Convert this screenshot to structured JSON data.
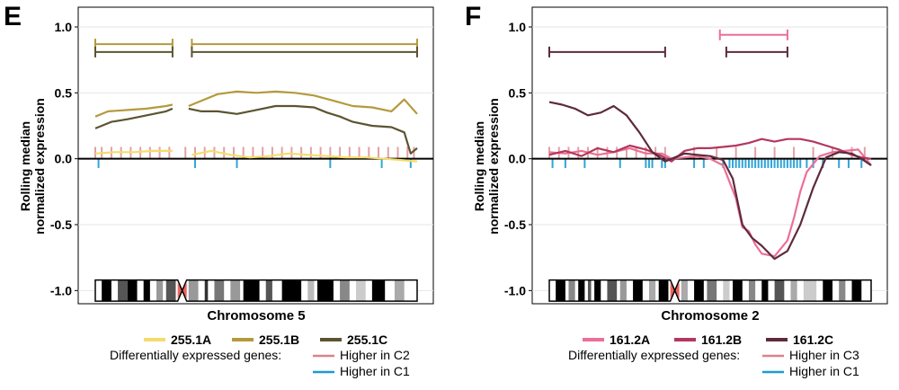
{
  "colors": {
    "A5": "#f5dc6a",
    "B5": "#b49a3c",
    "C5": "#5c5430",
    "A2": "#ec6f96",
    "B2": "#b3375e",
    "C2": "#5e2a3c",
    "higher_up": "#d9828a",
    "higher_down": "#1b9bd3",
    "centromere": "#f0625d",
    "grid": "#e6e6e6"
  },
  "chart_data": [
    {
      "type": "line",
      "panel": "E",
      "ylabel": [
        "Rolling median",
        "normalized expression"
      ],
      "xlabel": "Chromosome 5",
      "ylim": [
        -1.1,
        1.15
      ],
      "yticks": [
        1.0,
        0.5,
        0.0,
        -0.5,
        -1.0
      ],
      "ytick_labels": [
        "1.0",
        "0.5",
        "0.0",
        "-0.5",
        "-1.0"
      ],
      "xlim": [
        0,
        1
      ],
      "series": [
        {
          "name": "255.1A",
          "color_key": "A5",
          "segments": [
            {
              "x": [
                0.0,
                0.06,
                0.12,
                0.18,
                0.24
              ],
              "y": [
                0.04,
                0.05,
                0.05,
                0.06,
                0.06
              ]
            },
            {
              "x": [
                0.3,
                0.36,
                0.42,
                0.48,
                0.54,
                0.6,
                0.66,
                0.72,
                0.78,
                0.84,
                0.9,
                0.95,
                1.0
              ],
              "y": [
                0.03,
                0.06,
                0.03,
                0.01,
                0.02,
                0.04,
                0.03,
                0.02,
                0.01,
                0.01,
                0.0,
                -0.01,
                -0.02
              ]
            }
          ]
        },
        {
          "name": "255.1B",
          "color_key": "B5",
          "segments": [
            {
              "x": [
                0.0,
                0.04,
                0.1,
                0.16,
                0.22,
                0.24
              ],
              "y": [
                0.32,
                0.36,
                0.37,
                0.38,
                0.4,
                0.41
              ]
            },
            {
              "x": [
                0.29,
                0.33,
                0.38,
                0.44,
                0.5,
                0.56,
                0.62,
                0.68,
                0.74,
                0.8,
                0.86,
                0.92,
                0.96,
                1.0
              ],
              "y": [
                0.4,
                0.44,
                0.49,
                0.51,
                0.5,
                0.51,
                0.5,
                0.48,
                0.44,
                0.4,
                0.39,
                0.36,
                0.45,
                0.34
              ]
            }
          ]
        },
        {
          "name": "255.1C",
          "color_key": "C5",
          "segments": [
            {
              "x": [
                0.0,
                0.05,
                0.1,
                0.16,
                0.22,
                0.24
              ],
              "y": [
                0.23,
                0.28,
                0.3,
                0.33,
                0.36,
                0.38
              ]
            },
            {
              "x": [
                0.29,
                0.33,
                0.38,
                0.44,
                0.5,
                0.56,
                0.62,
                0.68,
                0.72,
                0.76,
                0.8,
                0.86,
                0.92,
                0.96,
                0.98,
                1.0
              ],
              "y": [
                0.38,
                0.36,
                0.36,
                0.34,
                0.37,
                0.4,
                0.4,
                0.39,
                0.35,
                0.32,
                0.28,
                0.25,
                0.24,
                0.2,
                0.04,
                0.08
              ]
            }
          ]
        }
      ],
      "higher_up_x": [
        0.0,
        0.02,
        0.05,
        0.08,
        0.11,
        0.14,
        0.17,
        0.2,
        0.23,
        0.28,
        0.31,
        0.34,
        0.37,
        0.4,
        0.43,
        0.46,
        0.49,
        0.52,
        0.55,
        0.58,
        0.61,
        0.64,
        0.67,
        0.7,
        0.73,
        0.76,
        0.79,
        0.82,
        0.85,
        0.88,
        0.91,
        0.94,
        0.97,
        0.99
      ],
      "higher_down_x": [
        0.01,
        0.31,
        0.44,
        0.73,
        0.89,
        0.98
      ],
      "brackets": [
        {
          "x0": 0.0,
          "x1": 0.24,
          "y": 0.87,
          "color_key": "B5"
        },
        {
          "x0": 0.0,
          "x1": 0.24,
          "y": 0.81,
          "color_key": "C5"
        },
        {
          "x0": 0.3,
          "x1": 1.0,
          "y": 0.87,
          "color_key": "B5"
        },
        {
          "x0": 0.3,
          "x1": 1.0,
          "y": 0.81,
          "color_key": "C5"
        }
      ],
      "ideogram": {
        "centromere": 0.27,
        "bands": [
          {
            "x0": 0.02,
            "x1": 0.05,
            "shade": "#000000"
          },
          {
            "x0": 0.07,
            "x1": 0.1,
            "shade": "#555555"
          },
          {
            "x0": 0.1,
            "x1": 0.13,
            "shade": "#000000"
          },
          {
            "x0": 0.15,
            "x1": 0.17,
            "shade": "#000000"
          },
          {
            "x0": 0.19,
            "x1": 0.21,
            "shade": "#999999"
          },
          {
            "x0": 0.22,
            "x1": 0.25,
            "shade": "#555555"
          },
          {
            "x0": 0.29,
            "x1": 0.32,
            "shade": "#999999"
          },
          {
            "x0": 0.34,
            "x1": 0.35,
            "shade": "#333333"
          },
          {
            "x0": 0.37,
            "x1": 0.4,
            "shade": "#777777"
          },
          {
            "x0": 0.42,
            "x1": 0.45,
            "shade": "#999999"
          },
          {
            "x0": 0.46,
            "x1": 0.51,
            "shade": "#000000"
          },
          {
            "x0": 0.53,
            "x1": 0.55,
            "shade": "#555555"
          },
          {
            "x0": 0.58,
            "x1": 0.64,
            "shade": "#000000"
          },
          {
            "x0": 0.66,
            "x1": 0.68,
            "shade": "#bbbbbb"
          },
          {
            "x0": 0.69,
            "x1": 0.74,
            "shade": "#000000"
          },
          {
            "x0": 0.76,
            "x1": 0.79,
            "shade": "#888888"
          },
          {
            "x0": 0.81,
            "x1": 0.84,
            "shade": "#cccccc"
          },
          {
            "x0": 0.86,
            "x1": 0.9,
            "shade": "#000000"
          },
          {
            "x0": 0.93,
            "x1": 0.96,
            "shade": "#aaaaaa"
          }
        ]
      },
      "legend": {
        "series_labels": [
          "255.1A",
          "255.1B",
          "255.1C"
        ],
        "deg_title": "Differentially expressed genes:",
        "higher_up_label": "Higher in C2",
        "higher_down_label": "Higher in C1"
      }
    },
    {
      "type": "line",
      "panel": "F",
      "ylabel": [
        "Rolling median",
        "normalized expression"
      ],
      "xlabel": "Chromosome 2",
      "ylim": [
        -1.1,
        1.15
      ],
      "yticks": [
        1.0,
        0.5,
        0.0,
        -0.5,
        -1.0
      ],
      "ytick_labels": [
        "1.0",
        "0.5",
        "0.0",
        "-0.5",
        "-1.0"
      ],
      "xlim": [
        0,
        1
      ],
      "series": [
        {
          "name": "161.2A",
          "color_key": "A2",
          "segments": [
            {
              "x": [
                0.0,
                0.05,
                0.1,
                0.15,
                0.2,
                0.25,
                0.3,
                0.35,
                0.38,
                0.42,
                0.46,
                0.5,
                0.54,
                0.58,
                0.6,
                0.62,
                0.64,
                0.66,
                0.7,
                0.74,
                0.76,
                0.78,
                0.8,
                0.84,
                0.88,
                0.92,
                0.96,
                1.0
              ],
              "y": [
                0.05,
                0.04,
                0.06,
                0.03,
                0.05,
                0.08,
                0.04,
                0.04,
                0.0,
                0.01,
                0.02,
                0.0,
                -0.05,
                -0.3,
                -0.52,
                -0.55,
                -0.65,
                -0.72,
                -0.74,
                -0.62,
                -0.45,
                -0.25,
                -0.1,
                0.02,
                0.05,
                0.06,
                0.07,
                -0.05
              ]
            }
          ]
        },
        {
          "name": "161.2B",
          "color_key": "B2",
          "segments": [
            {
              "x": [
                0.0,
                0.05,
                0.1,
                0.15,
                0.2,
                0.25,
                0.3,
                0.35,
                0.38,
                0.42,
                0.46,
                0.5,
                0.54,
                0.58,
                0.62,
                0.66,
                0.7,
                0.74,
                0.78,
                0.82,
                0.86,
                0.9,
                0.94,
                0.97,
                1.0
              ],
              "y": [
                0.03,
                0.06,
                0.02,
                0.08,
                0.05,
                0.1,
                0.07,
                0.02,
                -0.02,
                0.06,
                0.08,
                0.08,
                0.09,
                0.1,
                0.12,
                0.15,
                0.13,
                0.15,
                0.15,
                0.13,
                0.1,
                0.07,
                0.03,
                0.01,
                0.0
              ]
            }
          ]
        },
        {
          "name": "161.2C",
          "color_key": "C2",
          "segments": [
            {
              "x": [
                0.0,
                0.04,
                0.08,
                0.12,
                0.16,
                0.2,
                0.24,
                0.28,
                0.32,
                0.36,
                0.38,
                0.42,
                0.46,
                0.5,
                0.54,
                0.57,
                0.6,
                0.63,
                0.66,
                0.7,
                0.74,
                0.78,
                0.82,
                0.86,
                0.9,
                0.94,
                0.97,
                1.0
              ],
              "y": [
                0.43,
                0.41,
                0.38,
                0.33,
                0.35,
                0.4,
                0.33,
                0.2,
                0.05,
                -0.02,
                0.0,
                0.04,
                0.03,
                0.02,
                -0.01,
                -0.15,
                -0.5,
                -0.6,
                -0.66,
                -0.76,
                -0.7,
                -0.5,
                -0.22,
                0.01,
                0.05,
                0.04,
                0.0,
                -0.05
              ]
            }
          ]
        }
      ],
      "higher_up_x": [
        0.0,
        0.03,
        0.06,
        0.09,
        0.12,
        0.15,
        0.18,
        0.21,
        0.24,
        0.27,
        0.3,
        0.33,
        0.36,
        0.45,
        0.52,
        0.58,
        0.64,
        0.7,
        0.76,
        0.82,
        0.88,
        0.94,
        0.98
      ],
      "higher_down_x": [
        0.01,
        0.05,
        0.11,
        0.22,
        0.3,
        0.31,
        0.32,
        0.35,
        0.36,
        0.45,
        0.48,
        0.54,
        0.56,
        0.57,
        0.58,
        0.59,
        0.6,
        0.61,
        0.62,
        0.63,
        0.64,
        0.65,
        0.66,
        0.67,
        0.68,
        0.69,
        0.7,
        0.71,
        0.72,
        0.73,
        0.74,
        0.75,
        0.76,
        0.77,
        0.78,
        0.8,
        0.82,
        0.85,
        0.9,
        0.93,
        0.97
      ],
      "brackets": [
        {
          "x0": 0.53,
          "x1": 0.74,
          "y": 0.94,
          "color_key": "A2"
        },
        {
          "x0": 0.0,
          "x1": 0.36,
          "y": 0.81,
          "color_key": "C2"
        },
        {
          "x0": 0.55,
          "x1": 0.74,
          "y": 0.81,
          "color_key": "C2"
        }
      ],
      "ideogram": {
        "centromere": 0.39,
        "bands": [
          {
            "x0": 0.02,
            "x1": 0.05,
            "shade": "#000000"
          },
          {
            "x0": 0.06,
            "x1": 0.08,
            "shade": "#888888"
          },
          {
            "x0": 0.09,
            "x1": 0.11,
            "shade": "#000000"
          },
          {
            "x0": 0.12,
            "x1": 0.13,
            "shade": "#555555"
          },
          {
            "x0": 0.14,
            "x1": 0.16,
            "shade": "#000000"
          },
          {
            "x0": 0.18,
            "x1": 0.21,
            "shade": "#555555"
          },
          {
            "x0": 0.22,
            "x1": 0.24,
            "shade": "#999999"
          },
          {
            "x0": 0.26,
            "x1": 0.29,
            "shade": "#000000"
          },
          {
            "x0": 0.31,
            "x1": 0.33,
            "shade": "#aaaaaa"
          },
          {
            "x0": 0.34,
            "x1": 0.37,
            "shade": "#000000"
          },
          {
            "x0": 0.41,
            "x1": 0.43,
            "shade": "#aaaaaa"
          },
          {
            "x0": 0.45,
            "x1": 0.48,
            "shade": "#000000"
          },
          {
            "x0": 0.49,
            "x1": 0.52,
            "shade": "#777777"
          },
          {
            "x0": 0.54,
            "x1": 0.56,
            "shade": "#cccccc"
          },
          {
            "x0": 0.57,
            "x1": 0.6,
            "shade": "#000000"
          },
          {
            "x0": 0.62,
            "x1": 0.64,
            "shade": "#888888"
          },
          {
            "x0": 0.66,
            "x1": 0.68,
            "shade": "#000000"
          },
          {
            "x0": 0.7,
            "x1": 0.73,
            "shade": "#555555"
          },
          {
            "x0": 0.75,
            "x1": 0.77,
            "shade": "#aaaaaa"
          },
          {
            "x0": 0.79,
            "x1": 0.83,
            "shade": "#cccccc"
          },
          {
            "x0": 0.85,
            "x1": 0.88,
            "shade": "#000000"
          },
          {
            "x0": 0.9,
            "x1": 0.92,
            "shade": "#888888"
          },
          {
            "x0": 0.94,
            "x1": 0.97,
            "shade": "#000000"
          }
        ]
      },
      "legend": {
        "series_labels": [
          "161.2A",
          "161.2B",
          "161.2C"
        ],
        "deg_title": "Differentially expressed genes:",
        "higher_up_label": "Higher in C3",
        "higher_down_label": "Higher in C1"
      }
    }
  ]
}
